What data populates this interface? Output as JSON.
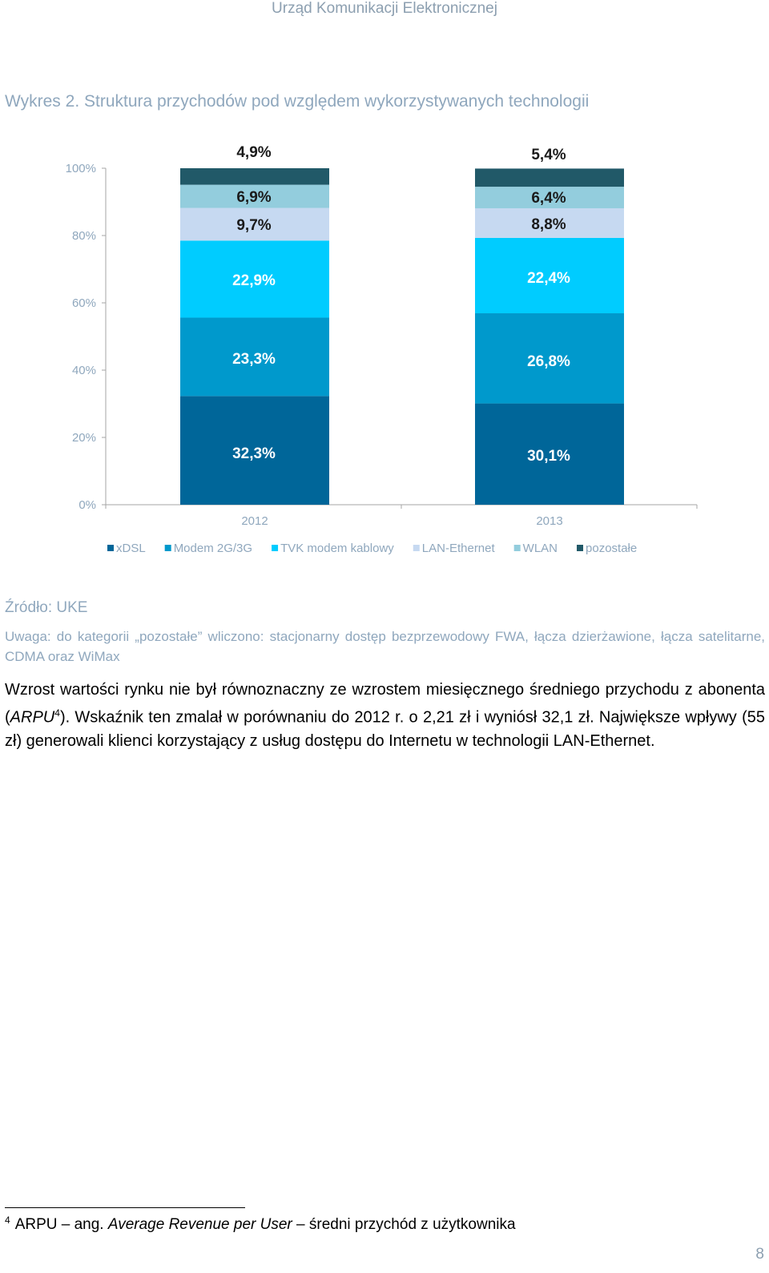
{
  "header": "Urząd Komunikacji Elektronicznej",
  "figure_title": "Wykres 2. Struktura przychodów pod względem wykorzystywanych technologii",
  "chart_data": {
    "type": "bar",
    "stacked": true,
    "categories": [
      "2012",
      "2013"
    ],
    "series": [
      {
        "name": "xDSL",
        "values": [
          32.3,
          30.1
        ],
        "labels": [
          "32,3%",
          "30,1%"
        ],
        "color": "#006699"
      },
      {
        "name": "Modem 2G/3G",
        "values": [
          23.3,
          26.8
        ],
        "labels": [
          "23,3%",
          "26,8%"
        ],
        "color": "#0099cc"
      },
      {
        "name": "TVK modem kablowy",
        "values": [
          22.9,
          22.4
        ],
        "labels": [
          "22,9%",
          "22,4%"
        ],
        "color": "#00ccff"
      },
      {
        "name": "LAN-Ethernet",
        "values": [
          9.7,
          8.8
        ],
        "labels": [
          "9,7%",
          "8,8%"
        ],
        "color": "#c6d9f1"
      },
      {
        "name": "WLAN",
        "values": [
          6.9,
          6.4
        ],
        "labels": [
          "6,9%",
          "6,4%"
        ],
        "color": "#93cddd"
      },
      {
        "name": "pozostałe",
        "values": [
          4.9,
          5.4
        ],
        "labels": [
          "4,9%",
          "5,4%"
        ],
        "color": "#215968"
      }
    ],
    "yticks": [
      "0%",
      "20%",
      "40%",
      "60%",
      "80%",
      "100%"
    ],
    "ylim": [
      0,
      100
    ],
    "legend": "bottom"
  },
  "source": "Źródło: UKE",
  "note": "Uwaga: do kategorii „pozostałe” wliczono: stacjonarny dostęp bezprzewodowy FWA, łącza dzierżawione, łącza satelitarne, CDMA oraz WiMax",
  "paragraph": {
    "part1": "Wzrost wartości rynku nie był równoznaczny ze wzrostem miesięcznego średniego przychodu z abonenta (",
    "arpu": "ARPU",
    "ref": "4",
    "part2": "). Wskaźnik ten zmalał w porównaniu do 2012 r. o 2,21 zł i wyniósł 32,1 zł. Największe wpływy (55 zł) generowali klienci korzystający z usług dostępu do Internetu w technologii LAN-Ethernet."
  },
  "footnote": {
    "num": "4",
    "part1": "ARPU – ang. ",
    "italic": "Average Revenue per User",
    "part2": " – średni przychód z użytkownika"
  },
  "page_number": "8"
}
